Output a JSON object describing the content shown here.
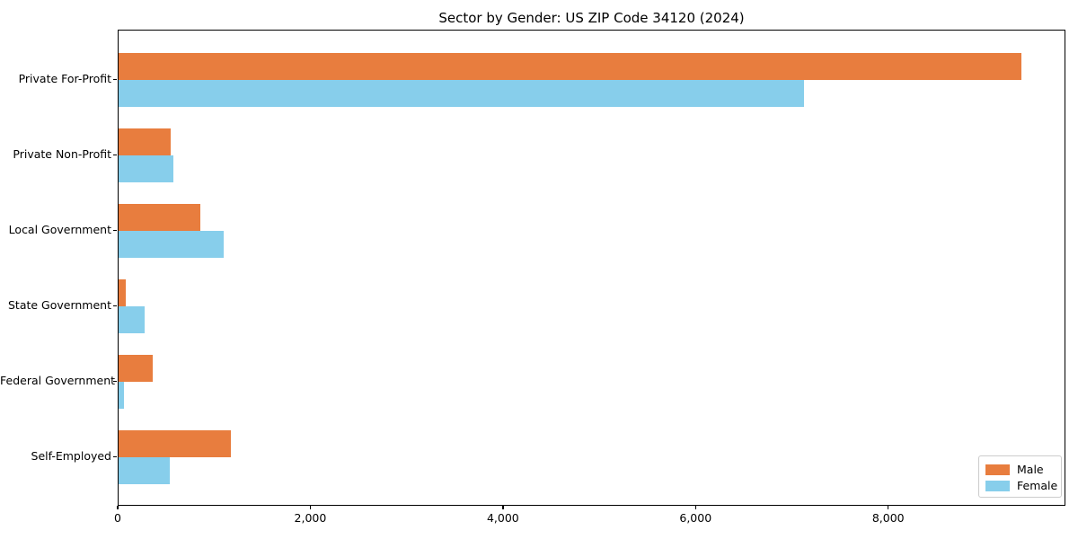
{
  "chart_data": {
    "type": "bar",
    "orientation": "horizontal",
    "title": "Sector by Gender: US ZIP Code 34120 (2024)",
    "xlabel": "",
    "ylabel": "",
    "categories": [
      "Private For-Profit",
      "Private Non-Profit",
      "Local Government",
      "State Government",
      "Federal Government",
      "Self-Employed"
    ],
    "series": [
      {
        "name": "Male",
        "color": "#e87d3e",
        "values": [
          9370,
          540,
          850,
          75,
          355,
          1165
        ]
      },
      {
        "name": "Female",
        "color": "#87ceeb",
        "values": [
          7115,
          570,
          1090,
          270,
          60,
          530
        ]
      }
    ],
    "xlim": [
      0,
      9840
    ],
    "xticks": [
      {
        "value": 0,
        "label": "0"
      },
      {
        "value": 2000,
        "label": "2,000"
      },
      {
        "value": 4000,
        "label": "4,000"
      },
      {
        "value": 6000,
        "label": "6,000"
      },
      {
        "value": 8000,
        "label": "8,000"
      }
    ],
    "grid": false,
    "legend": {
      "position": "lower right",
      "entries": [
        "Male",
        "Female"
      ]
    }
  }
}
